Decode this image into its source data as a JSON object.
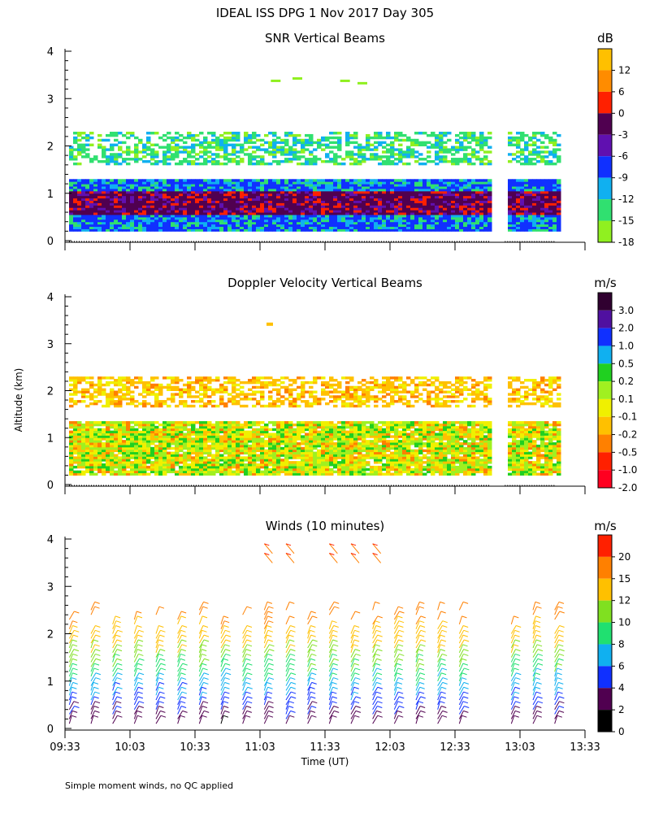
{
  "title": "IDEAL ISS DPG    1 Nov 2017 Day 305",
  "ylabel": "Altitude (km)",
  "xlabel": "Time (UT)",
  "footer": "Simple moment winds, no QC applied",
  "time_ticks": [
    "09:33",
    "10:03",
    "10:33",
    "11:03",
    "11:33",
    "12:03",
    "12:33",
    "13:03",
    "13:33"
  ],
  "altitude_ticks": [
    "0",
    "1",
    "2",
    "3",
    "4"
  ],
  "chart_data": [
    {
      "type": "heatmap",
      "title": "SNR Vertical Beams",
      "units": "dB",
      "xlabel": "Time (UT)",
      "ylabel": "Altitude (km)",
      "xlim": [
        "09:33",
        "13:33"
      ],
      "ylim": [
        0,
        4
      ],
      "colorbar": {
        "labels": [
          "12",
          "6",
          "0",
          "-3",
          "-6",
          "-9",
          "-12",
          "-15",
          "-18"
        ],
        "colors": [
          "#ffc000",
          "#ff8c00",
          "#ff2000",
          "#500050",
          "#6010b0",
          "#1030ff",
          "#10b0f0",
          "#30e070",
          "#90f020"
        ]
      },
      "data_gap": [
        "12:49",
        "12:56"
      ],
      "layers": [
        {
          "altitude_km": [
            0.2,
            0.7
          ],
          "snr_db": -9
        },
        {
          "altitude_km": [
            0.5,
            1.1
          ],
          "snr_db": 0
        },
        {
          "altitude_km": [
            1.1,
            1.35
          ],
          "snr_db": -12
        },
        {
          "altitude_km": [
            1.7,
            2.3
          ],
          "snr_db": -15
        },
        {
          "altitude_km": [
            3.3,
            3.5
          ],
          "snr_db": -18
        }
      ]
    },
    {
      "type": "heatmap",
      "title": "Doppler Velocity Vertical Beams",
      "units": "m/s",
      "xlabel": "Time (UT)",
      "ylabel": "Altitude (km)",
      "xlim": [
        "09:33",
        "13:33"
      ],
      "ylim": [
        0,
        4
      ],
      "colorbar": {
        "labels": [
          "3.0",
          "2.0",
          "1.0",
          "0.5",
          "0.2",
          "0.1",
          "-0.1",
          "-0.2",
          "-0.5",
          "-1.0",
          "-2.0"
        ],
        "colors": [
          "#300030",
          "#5010a0",
          "#1030ff",
          "#10b0f0",
          "#20d020",
          "#a0f020",
          "#f0f000",
          "#ffc000",
          "#ff8000",
          "#ff2000",
          "#ff0020"
        ]
      },
      "data_gap": [
        "12:49",
        "12:56"
      ],
      "layers": [
        {
          "altitude_km": [
            0.2,
            1.35
          ],
          "velocity_ms": 0.0
        },
        {
          "altitude_km": [
            1.7,
            2.3
          ],
          "velocity_ms": -0.2
        },
        {
          "altitude_km": [
            3.35,
            3.45
          ],
          "velocity_ms": -0.2
        }
      ]
    },
    {
      "type": "scatter",
      "title": "Winds (10 minutes)",
      "units": "m/s",
      "xlabel": "Time (UT)",
      "ylabel": "Altitude (km)",
      "xlim": [
        "09:33",
        "13:33"
      ],
      "ylim": [
        0,
        4
      ],
      "colorbar": {
        "labels": [
          "20",
          "15",
          "12",
          "10",
          "8",
          "6",
          "4",
          "2",
          "0"
        ],
        "colors": [
          "#ff2000",
          "#ff8000",
          "#ffc000",
          "#80e020",
          "#20e070",
          "#10b0f0",
          "#1030ff",
          "#500050",
          "#000000"
        ]
      },
      "profile_times": [
        "09:35",
        "09:45",
        "09:55",
        "10:05",
        "10:15",
        "10:25",
        "10:35",
        "10:45",
        "10:55",
        "11:05",
        "11:15",
        "11:25",
        "11:35",
        "11:45",
        "11:55",
        "12:05",
        "12:15",
        "12:25",
        "12:35",
        "12:59",
        "13:09",
        "13:19"
      ],
      "upper_winds": {
        "times": [
          "11:05",
          "11:15",
          "11:35",
          "11:45",
          "11:55"
        ],
        "altitude_km": [
          3.6,
          4.0
        ]
      }
    }
  ]
}
